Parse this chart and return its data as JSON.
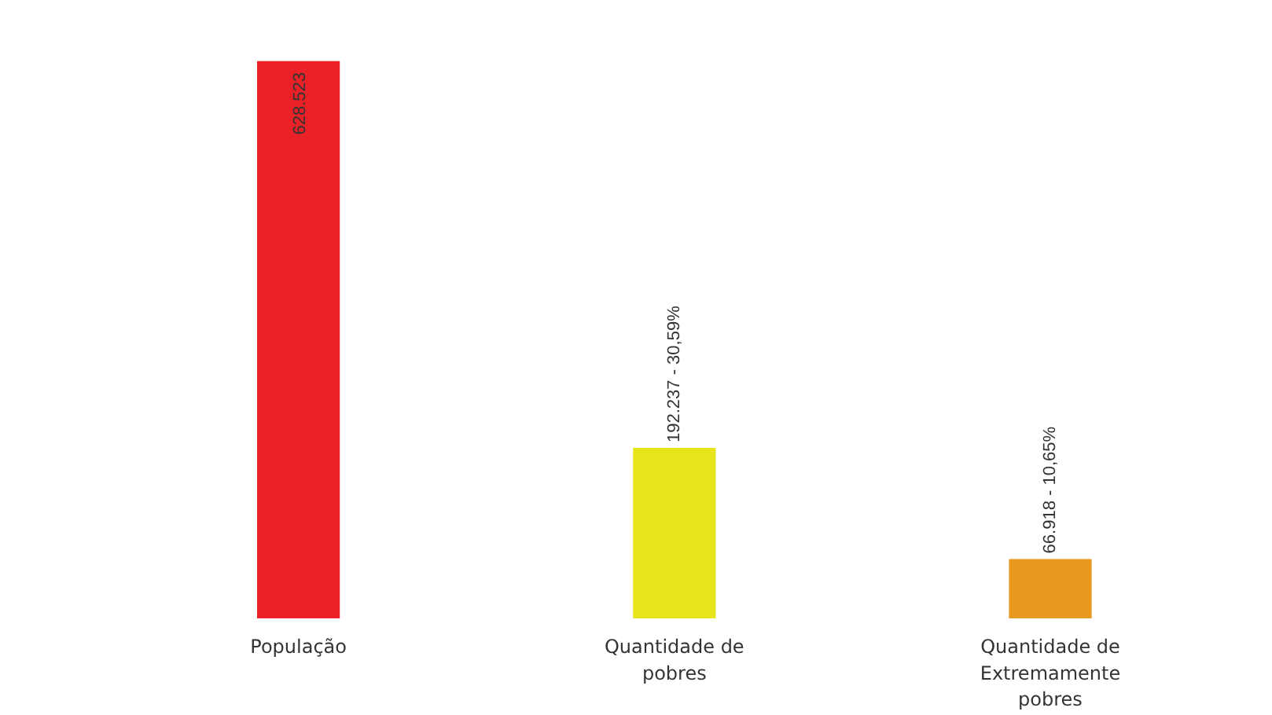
{
  "chart_data": {
    "type": "bar",
    "categories": [
      "População",
      "Quantidade de\npobres",
      "Quantidade de\nExtremamente\npobres"
    ],
    "values": [
      628523,
      192237,
      66918
    ],
    "colors": [
      "#ea2127",
      "#e8e41a",
      "#e89a20"
    ],
    "value_labels": [
      "628.523",
      "192.237 - 30,59%",
      "66.918 - 10,65%"
    ]
  }
}
